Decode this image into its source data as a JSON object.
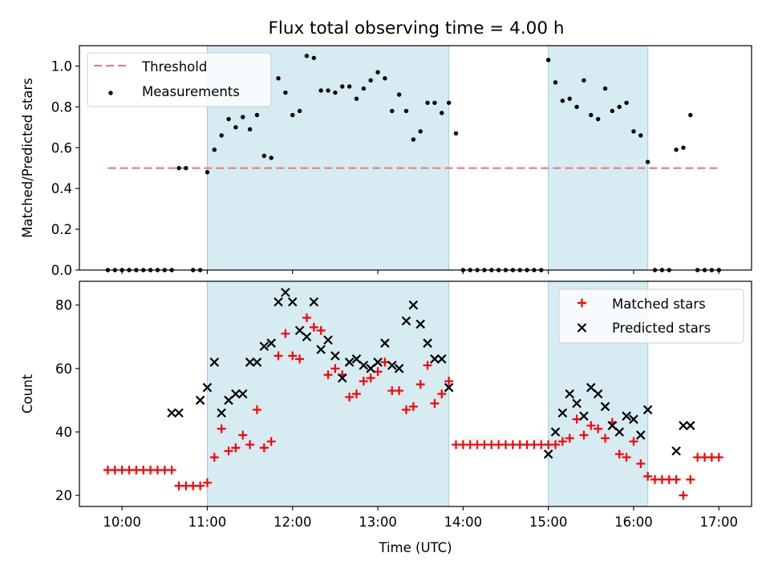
{
  "chart_data": [
    {
      "type": "scatter",
      "title": "Flux total observing time = 4.00 h",
      "xlabel": "",
      "ylabel": "Matched/Predicted stars",
      "xlim": [
        "09:30",
        "17:23"
      ],
      "ylim": [
        0,
        1.1
      ],
      "yticks": [
        "0.0",
        "0.2",
        "0.4",
        "0.6",
        "0.8",
        "1.0"
      ],
      "shaded_intervals": [
        [
          "11:00",
          "13:50"
        ],
        [
          "15:00",
          "16:10"
        ]
      ],
      "legend": {
        "placement": "top-left",
        "entries": [
          "Threshold",
          "Measurements"
        ]
      },
      "threshold": {
        "name": "Threshold",
        "y": 0.5,
        "x_start": "09:50",
        "x_end": "17:00",
        "color": "#f08080"
      },
      "series": [
        {
          "name": "Measurements",
          "color": "#000000",
          "x": [
            "09:50",
            "09:55",
            "10:00",
            "10:05",
            "10:10",
            "10:15",
            "10:20",
            "10:25",
            "10:30",
            "10:35",
            "10:40",
            "10:45",
            "10:50",
            "10:55",
            "11:00",
            "11:05",
            "11:10",
            "11:15",
            "11:20",
            "11:25",
            "11:30",
            "11:35",
            "11:40",
            "11:45",
            "11:50",
            "11:55",
            "12:00",
            "12:05",
            "12:10",
            "12:15",
            "12:20",
            "12:25",
            "12:30",
            "12:35",
            "12:40",
            "12:45",
            "12:50",
            "12:55",
            "13:00",
            "13:05",
            "13:10",
            "13:15",
            "13:20",
            "13:25",
            "13:30",
            "13:35",
            "13:40",
            "13:45",
            "13:50",
            "13:55",
            "14:00",
            "14:05",
            "14:10",
            "14:15",
            "14:20",
            "14:25",
            "14:30",
            "14:35",
            "14:40",
            "14:45",
            "14:50",
            "14:55",
            "15:00",
            "15:05",
            "15:10",
            "15:15",
            "15:20",
            "15:25",
            "15:30",
            "15:35",
            "15:40",
            "15:45",
            "15:50",
            "15:55",
            "16:00",
            "16:05",
            "16:10",
            "16:15",
            "16:20",
            "16:25",
            "16:30",
            "16:35",
            "16:40",
            "16:45",
            "16:50",
            "16:55",
            "17:00"
          ],
          "y": [
            0,
            0,
            0,
            0,
            0,
            0,
            0,
            0,
            0,
            0,
            0.5,
            0.5,
            0,
            0,
            0.48,
            0.59,
            0.66,
            0.74,
            0.7,
            0.75,
            0.69,
            0.76,
            0.56,
            0.55,
            0.94,
            0.87,
            0.76,
            0.78,
            1.05,
            1.04,
            0.88,
            0.88,
            0.87,
            0.9,
            0.9,
            0.84,
            0.89,
            0.93,
            0.97,
            0.94,
            0.78,
            0.86,
            0.78,
            0.64,
            0.68,
            0.82,
            0.82,
            0.77,
            0.82,
            0.67,
            0,
            0,
            0,
            0,
            0,
            0,
            0,
            0,
            0,
            0,
            0,
            0,
            1.03,
            0.92,
            0.83,
            0.84,
            0.8,
            0.93,
            0.76,
            0.74,
            0.89,
            0.78,
            0.8,
            0.82,
            0.68,
            0.66,
            0.53,
            0,
            0,
            0,
            0.59,
            0.6,
            0.76,
            0,
            0,
            0,
            0
          ]
        }
      ]
    },
    {
      "type": "scatter",
      "title": "",
      "xlabel": "Time (UTC)",
      "ylabel": "Count",
      "xlim": [
        "09:30",
        "17:23"
      ],
      "ylim": [
        16.5,
        87.5
      ],
      "xticks": [
        "10:00",
        "11:00",
        "12:00",
        "13:00",
        "14:00",
        "15:00",
        "16:00",
        "17:00"
      ],
      "yticks": [
        "20",
        "40",
        "60",
        "80"
      ],
      "shaded_intervals": [
        [
          "11:00",
          "13:50"
        ],
        [
          "15:00",
          "16:10"
        ]
      ],
      "legend": {
        "placement": "top-right",
        "entries": [
          "Matched stars",
          "Predicted stars"
        ]
      },
      "series": [
        {
          "name": "Matched stars",
          "color": "#ff0000",
          "marker": "+",
          "x": [
            "09:50",
            "09:55",
            "10:00",
            "10:05",
            "10:10",
            "10:15",
            "10:20",
            "10:25",
            "10:30",
            "10:35",
            "10:40",
            "10:45",
            "10:50",
            "10:55",
            "11:00",
            "11:05",
            "11:10",
            "11:15",
            "11:20",
            "11:25",
            "11:30",
            "11:35",
            "11:40",
            "11:45",
            "11:50",
            "11:55",
            "12:00",
            "12:05",
            "12:10",
            "12:15",
            "12:20",
            "12:25",
            "12:30",
            "12:35",
            "12:40",
            "12:45",
            "12:50",
            "12:55",
            "13:00",
            "13:05",
            "13:10",
            "13:15",
            "13:20",
            "13:25",
            "13:30",
            "13:35",
            "13:40",
            "13:45",
            "13:50",
            "13:55",
            "14:00",
            "14:05",
            "14:10",
            "14:15",
            "14:20",
            "14:25",
            "14:30",
            "14:35",
            "14:40",
            "14:45",
            "14:50",
            "14:55",
            "15:00",
            "15:05",
            "15:10",
            "15:15",
            "15:20",
            "15:25",
            "15:30",
            "15:35",
            "15:40",
            "15:45",
            "15:50",
            "15:55",
            "16:00",
            "16:05",
            "16:10",
            "16:15",
            "16:20",
            "16:25",
            "16:30",
            "16:35",
            "16:40",
            "16:45",
            "16:50",
            "16:55",
            "17:00"
          ],
          "y": [
            28,
            28,
            28,
            28,
            28,
            28,
            28,
            28,
            28,
            28,
            23,
            23,
            23,
            23,
            24,
            32,
            41,
            34,
            35,
            39,
            36,
            47,
            35,
            37,
            64,
            71,
            64,
            63,
            76,
            73,
            72,
            58,
            60,
            58,
            51,
            52,
            56,
            57,
            59,
            62,
            53,
            53,
            47,
            48,
            55,
            61,
            49,
            52,
            56,
            36,
            36,
            36,
            36,
            36,
            36,
            36,
            36,
            36,
            36,
            36,
            36,
            36,
            36,
            36,
            37,
            38,
            44,
            39,
            42,
            41,
            38,
            43,
            33,
            32,
            37,
            30,
            26,
            25,
            25,
            25,
            25,
            20,
            25,
            32,
            32,
            32,
            32
          ]
        },
        {
          "name": "Predicted stars",
          "color": "#000000",
          "marker": "x",
          "x": [
            "10:35",
            "10:40",
            "10:55",
            "11:00",
            "11:05",
            "11:10",
            "11:15",
            "11:20",
            "11:25",
            "11:30",
            "11:35",
            "11:40",
            "11:45",
            "11:50",
            "11:55",
            "12:00",
            "12:05",
            "12:10",
            "12:15",
            "12:20",
            "12:25",
            "12:30",
            "12:35",
            "12:40",
            "12:45",
            "12:50",
            "12:55",
            "13:00",
            "13:05",
            "13:10",
            "13:15",
            "13:20",
            "13:25",
            "13:30",
            "13:35",
            "13:40",
            "13:45",
            "13:50",
            "13:55",
            "15:00",
            "15:05",
            "15:10",
            "15:15",
            "15:20",
            "15:25",
            "15:30",
            "15:35",
            "15:40",
            "15:45",
            "15:50",
            "15:55",
            "16:00",
            "16:05",
            "16:10",
            "16:30",
            "16:35",
            "16:40"
          ],
          "y": [
            46,
            46,
            50,
            54,
            62,
            46,
            50,
            52,
            52,
            62,
            62,
            67,
            68,
            81,
            84,
            81,
            72,
            70,
            81,
            66,
            69,
            64,
            57,
            62,
            63,
            61,
            60,
            62,
            68,
            61,
            60,
            75,
            80,
            74,
            68,
            63,
            63,
            54,
            null,
            33,
            40,
            46,
            52,
            49,
            45,
            54,
            52,
            48,
            42,
            40,
            45,
            44,
            39,
            47,
            34,
            42,
            42
          ]
        }
      ]
    }
  ]
}
